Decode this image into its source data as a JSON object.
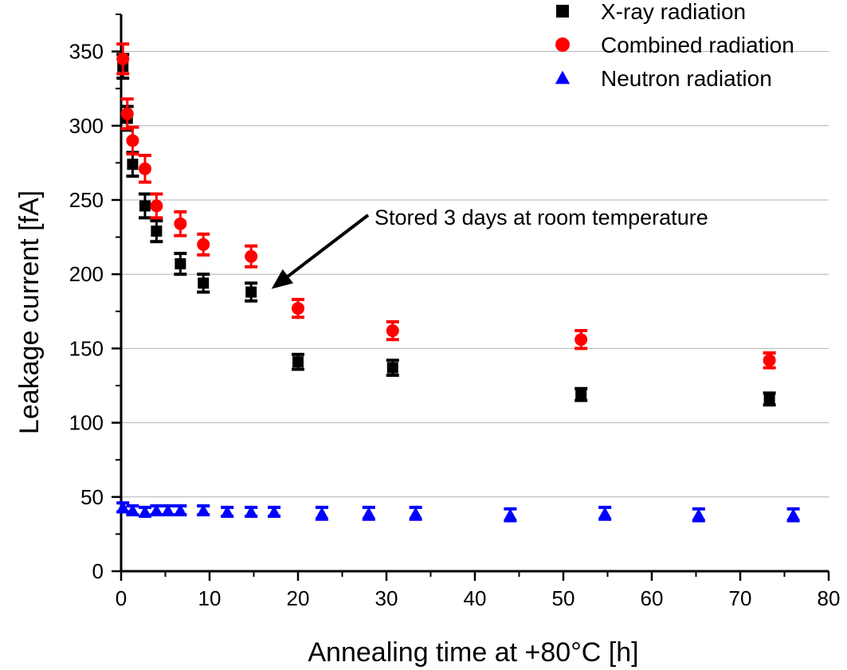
{
  "chart_data": {
    "type": "scatter",
    "title": "",
    "xlabel": "Annealing time at +80°C [h]",
    "ylabel": "Leakage current [fA]",
    "xlim": [
      0,
      80
    ],
    "ylim": [
      0,
      375
    ],
    "xticks": [
      0,
      10,
      20,
      30,
      40,
      50,
      60,
      70,
      80
    ],
    "yticks": [
      0,
      50,
      100,
      150,
      200,
      250,
      300,
      350
    ],
    "grid": "horizontal",
    "legend_position": "top-right",
    "series": [
      {
        "name": "X-ray radiation",
        "marker": "square",
        "color": "#000000",
        "points": [
          {
            "x": 0.2,
            "y": 340,
            "err": 8
          },
          {
            "x": 0.7,
            "y": 305,
            "err": 8
          },
          {
            "x": 1.3,
            "y": 274,
            "err": 8
          },
          {
            "x": 2.7,
            "y": 246,
            "err": 8
          },
          {
            "x": 4.0,
            "y": 229,
            "err": 7
          },
          {
            "x": 6.7,
            "y": 207,
            "err": 7
          },
          {
            "x": 9.3,
            "y": 194,
            "err": 6
          },
          {
            "x": 14.7,
            "y": 188,
            "err": 6
          },
          {
            "x": 20.0,
            "y": 141,
            "err": 5
          },
          {
            "x": 30.7,
            "y": 137,
            "err": 5
          },
          {
            "x": 52.0,
            "y": 119,
            "err": 4
          },
          {
            "x": 73.3,
            "y": 116,
            "err": 4
          }
        ]
      },
      {
        "name": "Combined radiation",
        "marker": "circle",
        "color": "#ff0000",
        "points": [
          {
            "x": 0.2,
            "y": 345,
            "err": 10
          },
          {
            "x": 0.7,
            "y": 308,
            "err": 10
          },
          {
            "x": 1.3,
            "y": 290,
            "err": 9
          },
          {
            "x": 2.7,
            "y": 271,
            "err": 9
          },
          {
            "x": 4.0,
            "y": 246,
            "err": 8
          },
          {
            "x": 6.7,
            "y": 234,
            "err": 8
          },
          {
            "x": 9.3,
            "y": 220,
            "err": 7
          },
          {
            "x": 14.7,
            "y": 212,
            "err": 7
          },
          {
            "x": 20.0,
            "y": 177,
            "err": 6
          },
          {
            "x": 30.7,
            "y": 162,
            "err": 6
          },
          {
            "x": 52.0,
            "y": 156,
            "err": 6
          },
          {
            "x": 73.3,
            "y": 142,
            "err": 5
          }
        ]
      },
      {
        "name": "Neutron radiation",
        "marker": "triangle",
        "color": "#0000ff",
        "points": [
          {
            "x": 0.2,
            "y": 43,
            "err": 3
          },
          {
            "x": 1.3,
            "y": 41,
            "err": 3
          },
          {
            "x": 2.7,
            "y": 40,
            "err": 3
          },
          {
            "x": 4.0,
            "y": 41,
            "err": 3
          },
          {
            "x": 5.3,
            "y": 41,
            "err": 3
          },
          {
            "x": 6.7,
            "y": 41,
            "err": 3
          },
          {
            "x": 9.3,
            "y": 41,
            "err": 3
          },
          {
            "x": 12.0,
            "y": 40,
            "err": 3
          },
          {
            "x": 14.7,
            "y": 40,
            "err": 3
          },
          {
            "x": 17.3,
            "y": 40,
            "err": 3
          },
          {
            "x": 22.7,
            "y": 39,
            "err": 4
          },
          {
            "x": 28.0,
            "y": 39,
            "err": 4
          },
          {
            "x": 33.3,
            "y": 39,
            "err": 4
          },
          {
            "x": 44.0,
            "y": 38,
            "err": 4
          },
          {
            "x": 54.7,
            "y": 39,
            "err": 4
          },
          {
            "x": 65.3,
            "y": 38,
            "err": 4
          },
          {
            "x": 76.0,
            "y": 38,
            "err": 4
          }
        ]
      }
    ],
    "annotation": {
      "text": "Stored 3 days at room temperature",
      "arrow_target": {
        "x": 17,
        "y": 188
      }
    }
  }
}
